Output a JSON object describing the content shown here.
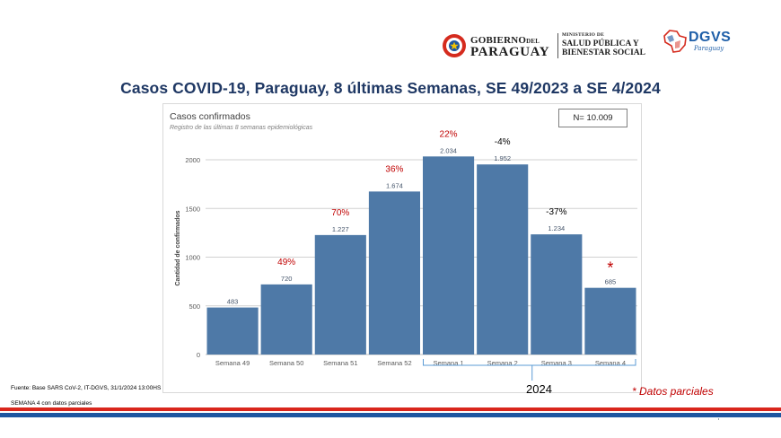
{
  "header": {
    "gov_line1_main": "GOBIERNO",
    "gov_line1_small": "DEL",
    "gov_line2": "PARAGUAY",
    "ministry_line1": "MINISTERIO DE",
    "ministry_line2": "SALUD PÚBLICA Y",
    "ministry_line3": "BIENESTAR SOCIAL",
    "dgvs_name": "DGVS",
    "dgvs_sub": "Paraguay"
  },
  "title": "Casos COVID-19, Paraguay, 8 últimas Semanas, SE 49/2023 a SE 4/2024",
  "chart_data": {
    "type": "bar",
    "title": "Casos confirmados",
    "subtitle": "Registro de las últimas 8 semanas epidemiológicas",
    "ylabel": "Cantidad de confirmados",
    "xlabel": "",
    "ylim": [
      0,
      2000
    ],
    "yticks": [
      0,
      500,
      1000,
      1500,
      2000
    ],
    "ytick_labels": [
      "0",
      "500",
      "1000",
      "1500",
      "2000"
    ],
    "grid": true,
    "categories": [
      "Semana 49",
      "Semana 50",
      "Semana 51",
      "Semana 52",
      "Semana 1",
      "Semana 2",
      "Semana 3",
      "Semana 4"
    ],
    "values": [
      483,
      720,
      1227,
      1674,
      2034,
      1952,
      1234,
      685
    ],
    "value_labels": [
      "483",
      "720",
      "1.227",
      "1.674",
      "2.034",
      "1.952",
      "1.234",
      "685"
    ],
    "change_labels": [
      "",
      "49%",
      "70%",
      "36%",
      "22%",
      "-4%",
      "-37%",
      "*"
    ],
    "change_colors": [
      "",
      "#c00000",
      "#c00000",
      "#c00000",
      "#c00000",
      "#000000",
      "#000000",
      "#c00000"
    ],
    "bar_color": "#4e79a7",
    "n_label": "N= 10.009",
    "group_label": "2024",
    "group_categories": [
      "Semana 1",
      "Semana 2",
      "Semana 3",
      "Semana 4"
    ]
  },
  "footer": {
    "partial_note": "* Datos parciales",
    "source": "Fuente: Base SARS CoV-2, IT-DGVS, 31/1/2024 13:00HS",
    "week_note": "SEMANA 4 con datos parciales"
  }
}
